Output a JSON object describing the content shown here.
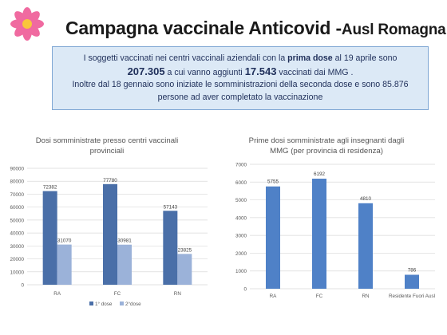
{
  "header": {
    "title_main": "Campagna vaccinale Anticovid -",
    "title_sub": "Ausl Romagna",
    "logo_icon": "pink-flower-icon"
  },
  "info": {
    "l1_a": "I soggetti vaccinati nei centri vaccinali aziendali con la ",
    "l1_b": "prima dose",
    "l1_c": " al 19 aprile sono",
    "l2_a": "207.305",
    "l2_b": " a cui vanno aggiunti ",
    "l2_c": "17.543",
    "l2_d": " vaccinati dai MMG .",
    "l3": "Inoltre dal 18 gennaio sono iniziate le somministrazioni della  seconda dose  e sono  85.876",
    "l4": "persone ad aver completato la vaccinazione"
  },
  "colors": {
    "series1": "#4a6fa8",
    "series2": "#9bb2d9",
    "bar_single": "#4f81c7",
    "grid": "#d9d9d9",
    "axis_text": "#595959"
  },
  "chart_data": [
    {
      "type": "bar",
      "title": "Dosi somministrate presso centri vaccinali provinciali",
      "categories": [
        "RA",
        "FC",
        "RN"
      ],
      "series": [
        {
          "name": "1° dose",
          "values": [
            72382,
            77780,
            57143
          ]
        },
        {
          "name": "2°dose",
          "values": [
            31070,
            30981,
            23825
          ]
        }
      ],
      "ylim": [
        0,
        90000
      ],
      "yticks": [
        0,
        10000,
        20000,
        30000,
        40000,
        50000,
        60000,
        70000,
        80000,
        90000
      ],
      "grid": true,
      "legend": "bottom"
    },
    {
      "type": "bar",
      "title": "Prime dosi somministrate agli insegnanti dagli MMG (per provincia di residenza)",
      "categories": [
        "RA",
        "FC",
        "RN",
        "Residente Fuori Ausl"
      ],
      "values": [
        5755,
        6192,
        4810,
        786
      ],
      "ylim": [
        0,
        7000
      ],
      "yticks": [
        0,
        1000,
        2000,
        3000,
        4000,
        5000,
        6000,
        7000
      ],
      "grid": true
    }
  ]
}
